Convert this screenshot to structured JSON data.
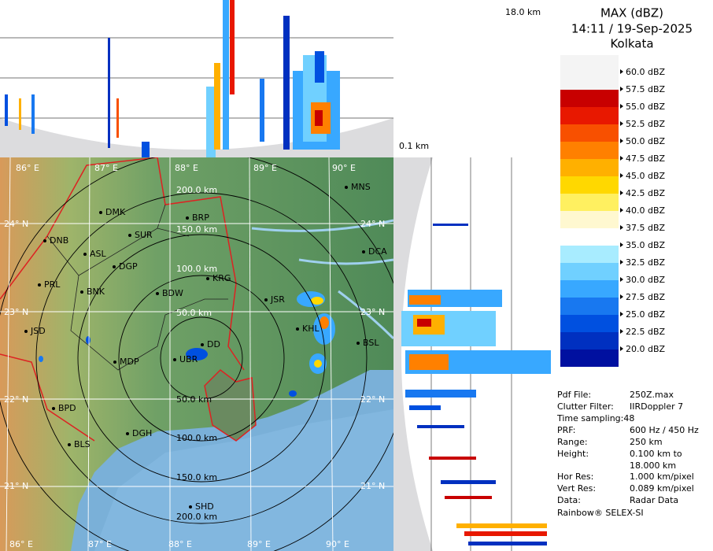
{
  "header": {
    "product": "MAX (dBZ)",
    "time": "14:11 / 19-Sep-2025",
    "station": "Kolkata"
  },
  "heights": {
    "top": "18.0 km",
    "bottom": "0.1 km"
  },
  "legend": {
    "labels": [
      "60.0 dBZ",
      "57.5 dBZ",
      "55.0 dBZ",
      "52.5 dBZ",
      "50.0 dBZ",
      "47.5 dBZ",
      "45.0 dBZ",
      "42.5 dBZ",
      "40.0 dBZ",
      "37.5 dBZ",
      "35.0 dBZ",
      "32.5 dBZ",
      "30.0 dBZ",
      "27.5 dBZ",
      "25.0 dBZ",
      "22.5 dBZ",
      "20.0 dBZ"
    ],
    "colors": [
      "#a00000",
      "#c80000",
      "#e81800",
      "#f85000",
      "#ff8000",
      "#ffb000",
      "#ffd800",
      "#fff060",
      "#fff8d0",
      "#ffffff",
      "#a8ecff",
      "#70d0ff",
      "#38a8ff",
      "#1878f0",
      "#0050e0",
      "#0030c0",
      "#0010a0"
    ]
  },
  "map": {
    "lon_labels": [
      "86° E",
      "87° E",
      "88° E",
      "89° E",
      "90° E"
    ],
    "lat_labels": [
      "24° N",
      "23° N",
      "22° N",
      "21° N"
    ],
    "range_labels_north": [
      "200.0 km",
      "150.0 km",
      "100.0 km",
      "50.0 km"
    ],
    "range_labels_south": [
      "50.0 km",
      "100.0 km",
      "150.0 km",
      "200.0 km"
    ],
    "cities": [
      "MNS",
      "BRP",
      "DMK",
      "SUR",
      "DNB",
      "ASL",
      "DCA",
      "DGP",
      "KRG",
      "PRL",
      "BNK",
      "BDW",
      "JSR",
      "KHL",
      "BSL",
      "JSD",
      "DD",
      "MDP",
      "UBR",
      "BPD",
      "DGH",
      "BLS",
      "SHD"
    ]
  },
  "info": {
    "rows": [
      [
        "Pdf File:",
        "250Z.max"
      ],
      [
        "Clutter Filter:",
        "IIRDoppler 7"
      ],
      [
        "PRF:",
        "600 Hz / 450 Hz"
      ],
      [
        "Range:",
        "250 km"
      ],
      [
        "Height:",
        "0.100 km to"
      ],
      [
        "",
        "18.000 km"
      ],
      [
        "Hor Res:",
        "1.000 km/pixel"
      ],
      [
        "Vert Res:",
        "0.089 km/pixel"
      ],
      [
        "Data:",
        "Radar Data"
      ]
    ],
    "time_sampling": "Time sampling:48",
    "footer": "Rainbow® SELEX-SI"
  }
}
